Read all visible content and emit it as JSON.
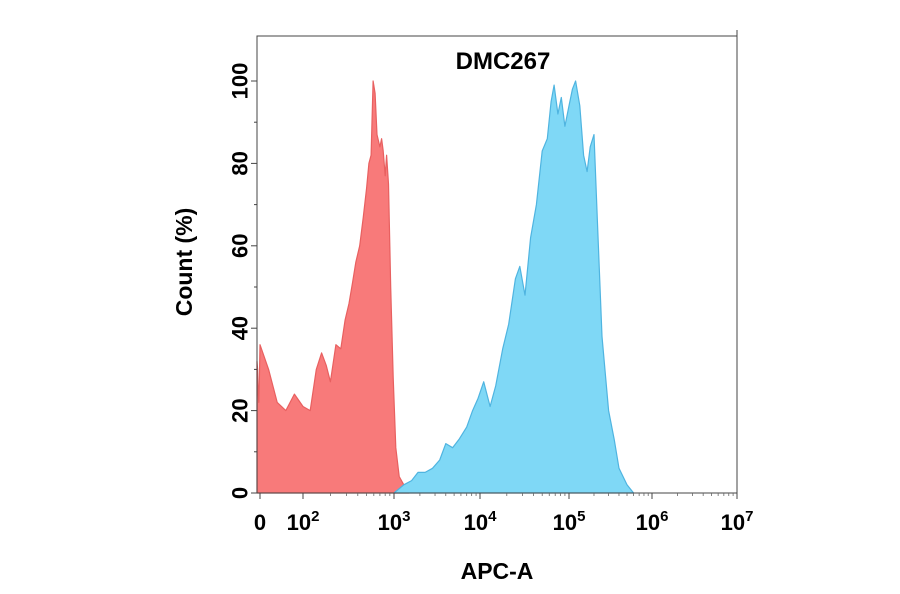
{
  "chart_data": {
    "type": "area",
    "title": "DMC267",
    "xlabel": "APC-A",
    "ylabel": "Count  (%)",
    "x_scale": "biexponential",
    "xlim": [
      -150,
      10000000
    ],
    "ylim": [
      0,
      110
    ],
    "x_ticks": [
      {
        "value": 0,
        "base": "0",
        "exp": ""
      },
      {
        "value": 100,
        "base": "10",
        "exp": "2"
      },
      {
        "value": 1000,
        "base": "10",
        "exp": "3"
      },
      {
        "value": 10000,
        "base": "10",
        "exp": "4"
      },
      {
        "value": 100000,
        "base": "10",
        "exp": "5"
      },
      {
        "value": 1000000,
        "base": "10",
        "exp": "6"
      },
      {
        "value": 10000000,
        "base": "10",
        "exp": "7"
      }
    ],
    "y_ticks": [
      {
        "value": 0,
        "label": "0"
      },
      {
        "value": 20,
        "label": "20"
      },
      {
        "value": 40,
        "label": "40"
      },
      {
        "value": 60,
        "label": "60"
      },
      {
        "value": 80,
        "label": "80"
      },
      {
        "value": 100,
        "label": "100"
      }
    ],
    "grid": false,
    "series": [
      {
        "color": "#f87a7a",
        "stroke": "#e86060",
        "points": [
          [
            -150,
            32
          ],
          [
            -120,
            30
          ],
          [
            -90,
            24
          ],
          [
            -60,
            22
          ],
          [
            -30,
            28
          ],
          [
            0,
            36
          ],
          [
            20,
            30
          ],
          [
            40,
            22
          ],
          [
            60,
            20
          ],
          [
            80,
            24
          ],
          [
            100,
            21
          ],
          [
            120,
            20
          ],
          [
            140,
            30
          ],
          [
            160,
            34
          ],
          [
            180,
            31
          ],
          [
            200,
            27
          ],
          [
            230,
            36
          ],
          [
            260,
            35
          ],
          [
            290,
            42
          ],
          [
            320,
            46
          ],
          [
            350,
            51
          ],
          [
            380,
            56
          ],
          [
            420,
            60
          ],
          [
            460,
            67
          ],
          [
            500,
            74
          ],
          [
            530,
            80
          ],
          [
            560,
            82
          ],
          [
            590,
            100
          ],
          [
            620,
            97
          ],
          [
            650,
            87
          ],
          [
            700,
            84
          ],
          [
            730,
            86
          ],
          [
            760,
            83
          ],
          [
            800,
            77
          ],
          [
            830,
            82
          ],
          [
            870,
            75
          ],
          [
            920,
            50
          ],
          [
            980,
            28
          ],
          [
            1050,
            11
          ],
          [
            1150,
            4
          ],
          [
            1300,
            2
          ],
          [
            1500,
            0
          ]
        ]
      },
      {
        "color": "#7fd8f6",
        "stroke": "#4fb4e0",
        "points": [
          [
            1000,
            0
          ],
          [
            1300,
            2
          ],
          [
            1600,
            3
          ],
          [
            1900,
            5
          ],
          [
            2300,
            5
          ],
          [
            2800,
            6
          ],
          [
            3400,
            8
          ],
          [
            4000,
            12
          ],
          [
            4800,
            11
          ],
          [
            5700,
            13
          ],
          [
            7000,
            16
          ],
          [
            8200,
            20
          ],
          [
            9500,
            23
          ],
          [
            11000,
            27
          ],
          [
            13000,
            21
          ],
          [
            15000,
            26
          ],
          [
            18000,
            35
          ],
          [
            21000,
            41
          ],
          [
            25000,
            52
          ],
          [
            28000,
            55
          ],
          [
            32000,
            48
          ],
          [
            37000,
            62
          ],
          [
            43000,
            70
          ],
          [
            50000,
            83
          ],
          [
            57000,
            86
          ],
          [
            63000,
            95
          ],
          [
            68000,
            99
          ],
          [
            75000,
            92
          ],
          [
            82000,
            96
          ],
          [
            90000,
            89
          ],
          [
            100000,
            94
          ],
          [
            110000,
            98
          ],
          [
            120000,
            100
          ],
          [
            135000,
            94
          ],
          [
            150000,
            82
          ],
          [
            165000,
            78
          ],
          [
            180000,
            84
          ],
          [
            200000,
            87
          ],
          [
            220000,
            66
          ],
          [
            250000,
            38
          ],
          [
            300000,
            20
          ],
          [
            350000,
            13
          ],
          [
            400000,
            6
          ],
          [
            500000,
            2
          ],
          [
            600000,
            0
          ]
        ]
      }
    ]
  }
}
